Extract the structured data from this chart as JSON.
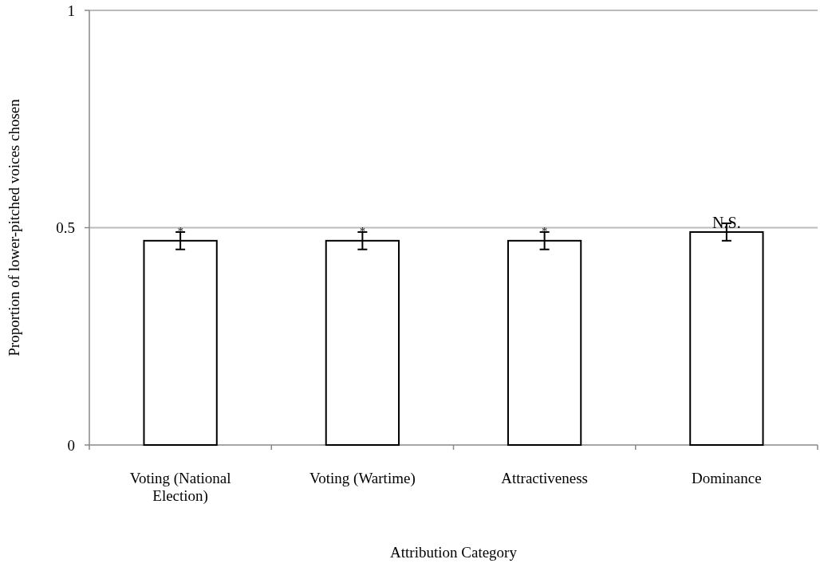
{
  "chart_data": {
    "type": "bar",
    "xlabel": "Attribution Category",
    "ylabel": "Proportion of lower-pitched voices chosen",
    "categories": [
      "Voting (National Election)",
      "Voting (Wartime)",
      "Attractiveness",
      "Dominance"
    ],
    "values": [
      0.47,
      0.47,
      0.47,
      0.49
    ],
    "errors": [
      0.02,
      0.02,
      0.02,
      0.02
    ],
    "color": "#ffffff",
    "ylim": [
      0,
      1
    ],
    "yticks": [
      0,
      0.5,
      1
    ],
    "grid": "y",
    "annotations": [
      {
        "text": "*",
        "x": "Voting (National Election)",
        "y": 0.49
      },
      {
        "text": "*",
        "x": "Voting (Wartime)",
        "y": 0.49
      },
      {
        "text": "*",
        "x": "Attractiveness",
        "y": 0.49
      },
      {
        "text": "N.S.",
        "x": "Dominance",
        "y": 0.51
      }
    ]
  }
}
